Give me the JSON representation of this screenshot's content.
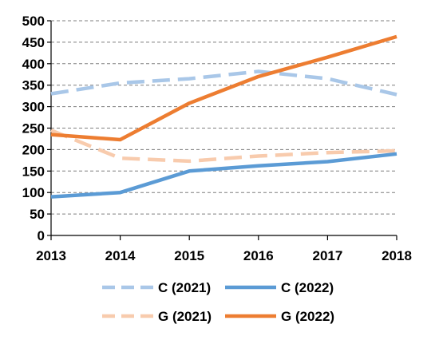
{
  "chart_data": {
    "type": "line",
    "x": [
      "2013",
      "2014",
      "2015",
      "2016",
      "2017",
      "2018"
    ],
    "ylim": [
      0,
      500
    ],
    "yticks": [
      0,
      50,
      100,
      150,
      200,
      250,
      300,
      350,
      400,
      450,
      500
    ],
    "grid": true,
    "legend_position": "bottom",
    "series": [
      {
        "name": "C (2021)",
        "values": [
          330,
          355,
          365,
          382,
          365,
          328
        ],
        "color": "#a9c7e8",
        "style": "dashed"
      },
      {
        "name": "C (2022)",
        "values": [
          90,
          100,
          150,
          162,
          172,
          190
        ],
        "color": "#5b9bd5",
        "style": "solid"
      },
      {
        "name": "G (2021)",
        "values": [
          245,
          180,
          173,
          185,
          193,
          197
        ],
        "color": "#f8cbad",
        "style": "dashed"
      },
      {
        "name": "G (2022)",
        "values": [
          235,
          223,
          308,
          370,
          415,
          463
        ],
        "color": "#ed7d31",
        "style": "solid"
      }
    ]
  }
}
